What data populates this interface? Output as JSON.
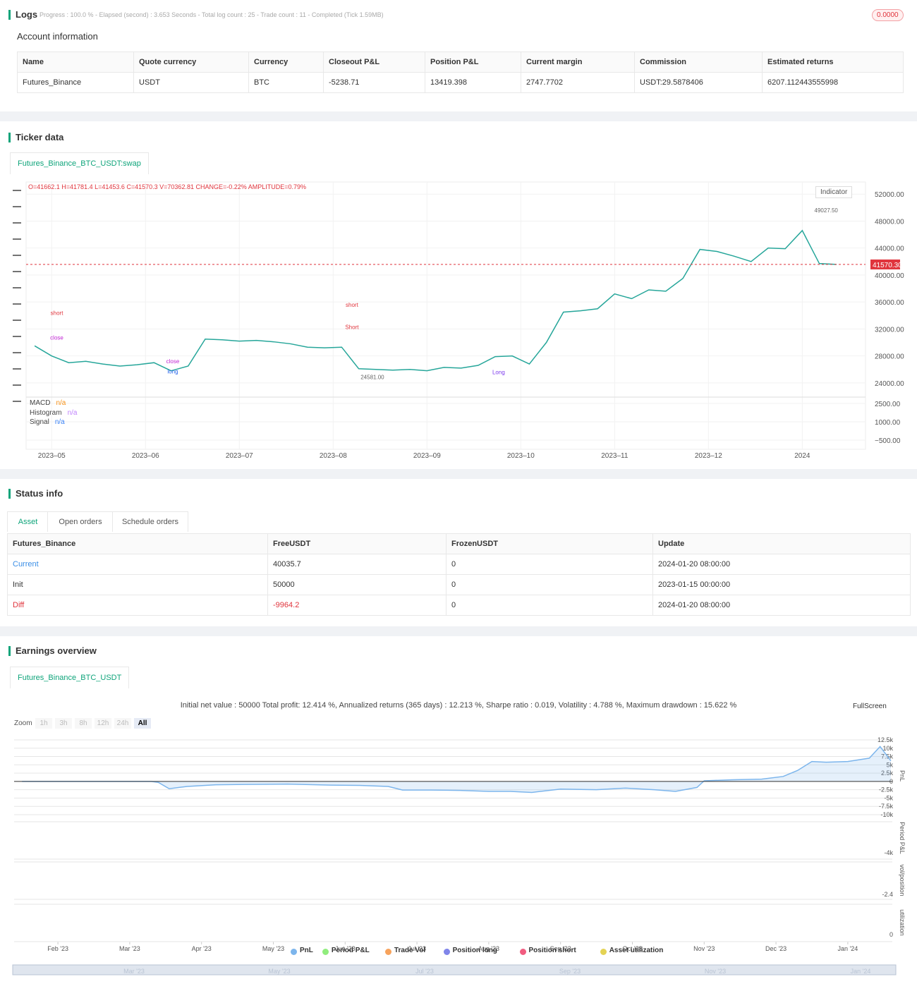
{
  "logs": {
    "title": "Logs",
    "progress": "Progress : 100.0 % - Elapsed (second) : 3.653 Seconds - Total log count : 25 - Trade count : 11 - Completed (Tick 1.59MB)",
    "badge": "0.0000"
  },
  "account": {
    "title": "Account information",
    "headers": [
      "Name",
      "Quote currency",
      "Currency",
      "Closeout P&L",
      "Position P&L",
      "Current margin",
      "Commission",
      "Estimated returns"
    ],
    "rows": [
      [
        "Futures_Binance",
        "USDT",
        "BTC",
        -5238.71,
        13419.398,
        2747.7702,
        "USDT:29.5878406",
        6207.112443555998
      ]
    ]
  },
  "ticker": {
    "title": "Ticker data",
    "tab": "Futures_Binance_BTC_USDT:swap",
    "ohlc": "O=41662.1 H=41781.4 L=41453.6 C=41570.3 V=70362.81 CHANGE=-0.22% AMPLITUDE=0.79%",
    "indicator": "Indicator",
    "macd_legend": [
      {
        "name": "MACD",
        "value": "n/a"
      },
      {
        "name": "Histogram",
        "value": "n/a"
      },
      {
        "name": "Signal",
        "value": "n/a"
      }
    ]
  },
  "status": {
    "title": "Status info",
    "tabs": [
      "Asset",
      "Open orders",
      "Schedule orders"
    ],
    "headers": [
      "Futures_Binance",
      "FreeUSDT",
      "FrozenUSDT",
      "Update"
    ],
    "rows": [
      [
        "Current",
        40035.7,
        0,
        "2024-01-20 08:00:00"
      ],
      [
        "Init",
        50000,
        0,
        "2023-01-15 00:00:00"
      ],
      [
        "Diff",
        -9964.2,
        0,
        "2024-01-20 08:00:00"
      ]
    ]
  },
  "earnings": {
    "title": "Earnings overview",
    "tab": "Futures_Binance_BTC_USDT",
    "summary": "Initial net value : 50000 Total profit: 12.414 %, Annualized returns (365 days) : 12.213 %, Sharpe ratio : 0.019, Volatility : 4.788 %, Maximum drawdown : 15.622 %",
    "fullscreen": "FullScreen",
    "zoom": "Zoom",
    "zoom_buttons": [
      "1h",
      "3h",
      "8h",
      "12h",
      "24h",
      "All"
    ],
    "axis_titles": [
      "PnL",
      "Period P&L",
      "vol/position",
      "utilization"
    ],
    "pane_labels": [
      "-4k",
      "-2.4",
      "0"
    ],
    "legend": [
      {
        "name": "PnL",
        "color": "#7cb5ec"
      },
      {
        "name": "Period P&L",
        "color": "#90ed7d"
      },
      {
        "name": "Trade Vol",
        "color": "#f7a35c"
      },
      {
        "name": "Position long",
        "color": "#8085e9"
      },
      {
        "name": "Position short",
        "color": "#f15c80"
      },
      {
        "name": "Asset utilization",
        "color": "#e4d354"
      }
    ],
    "navigator": [
      "Mar '23",
      "May '23",
      "Jul '23",
      "Sep '23",
      "Nov '23",
      "Jan '24"
    ]
  },
  "chart_data": [
    {
      "type": "line",
      "color": "#26a69a",
      "values": [
        29500,
        28000,
        27000,
        27200,
        26800,
        26500,
        26700,
        27000,
        25800,
        26500,
        30500,
        30400,
        30200,
        30300,
        30100,
        29800,
        29300,
        29200,
        29300,
        26100,
        26000,
        25900,
        26000,
        25800,
        26300,
        26200,
        26600,
        27900,
        28000,
        26800,
        30000,
        34500,
        34700,
        35000,
        37200,
        36500,
        37800,
        37600,
        39500,
        43800,
        43500,
        42800,
        42000,
        44000,
        43900,
        46600,
        41700,
        41570
      ],
      "xlim": [
        -0.5,
        48.5
      ],
      "ylim": [
        22000,
        53800
      ],
      "xticks": [
        {
          "value": 1,
          "label": "2023–05"
        },
        {
          "value": 6.5,
          "label": "2023–06"
        },
        {
          "value": 12,
          "label": "2023–07"
        },
        {
          "value": 17.5,
          "label": "2023–08"
        },
        {
          "value": 23,
          "label": "2023–09"
        },
        {
          "value": 28.5,
          "label": "2023–10"
        },
        {
          "value": 34,
          "label": "2023–11"
        },
        {
          "value": 39.5,
          "label": "2023–12"
        },
        {
          "value": 45,
          "label": "2024"
        }
      ],
      "yticks": [
        {
          "value": 24000,
          "label": "24000.00"
        },
        {
          "value": 28000,
          "label": "28000.00"
        },
        {
          "value": 32000,
          "label": "32000.00"
        },
        {
          "value": 36000,
          "label": "36000.00"
        },
        {
          "value": 40000,
          "label": "40000.00"
        },
        {
          "value": 44000,
          "label": "44000.00"
        },
        {
          "value": 48000,
          "label": "48000.00"
        },
        {
          "value": 52000,
          "label": "52000.00"
        }
      ],
      "reference_line": {
        "value": 41570.3,
        "label": "41570.30"
      },
      "annotations": [
        {
          "text": "short",
          "x": 1.3,
          "y": 34100,
          "color": "#e0343c"
        },
        {
          "text": "close",
          "x": 1.3,
          "y": 30400,
          "color": "#c026d3"
        },
        {
          "text": "short",
          "x": 18.6,
          "y": 35300,
          "color": "#e0343c"
        },
        {
          "text": "Short",
          "x": 18.6,
          "y": 32000,
          "color": "#e0343c"
        },
        {
          "text": "close",
          "x": 8.1,
          "y": 26900,
          "color": "#c026d3"
        },
        {
          "text": "long",
          "x": 8.1,
          "y": 25400,
          "color": "#2563eb"
        },
        {
          "text": "Long",
          "x": 27.2,
          "y": 25300,
          "color": "#7c3aed"
        },
        {
          "text": "49027.50",
          "x": 46.4,
          "y": 49300,
          "color": "#666666"
        },
        {
          "text": "24581.00",
          "x": 19.8,
          "y": 24581,
          "color": "#666666"
        }
      ]
    },
    {
      "type": "bar",
      "ylim": [
        -1250,
        2900
      ],
      "yticks": [
        {
          "value": -500,
          "label": "−500.00"
        },
        {
          "value": 1000,
          "label": "1000.00"
        },
        {
          "value": 2500,
          "label": "2500.00"
        }
      ]
    },
    {
      "type": "area",
      "color": "#7cb5ec",
      "x": [
        0.5,
        2.3,
        2.4,
        2.55,
        2.8,
        3.2,
        3.6,
        4.2,
        4.8,
        5.2,
        5.6,
        5.8,
        6.2,
        6.6,
        7.0,
        7.3,
        7.6,
        8.0,
        8.5,
        8.9,
        9.3,
        9.6,
        9.9,
        10.0,
        10.4,
        10.8,
        11.1,
        11.3,
        11.5,
        11.7,
        12.0,
        12.3,
        12.45,
        12.6
      ],
      "values": [
        0,
        0,
        -300,
        -2200,
        -1500,
        -1000,
        -900,
        -800,
        -1100,
        -1200,
        -1500,
        -2600,
        -2600,
        -2700,
        -3000,
        -3000,
        -3300,
        -2300,
        -2500,
        -2000,
        -2500,
        -3000,
        -1800,
        200,
        500,
        700,
        1500,
        3300,
        6000,
        5800,
        6000,
        7000,
        10500,
        6200
      ],
      "xlim": [
        0.39,
        12.62
      ],
      "ylim": [
        -11060,
        13350
      ],
      "xticks": [
        {
          "value": 1,
          "label": "Feb '23"
        },
        {
          "value": 2,
          "label": "Mar '23"
        },
        {
          "value": 3,
          "label": "Apr '23"
        },
        {
          "value": 4,
          "label": "May '23"
        },
        {
          "value": 5,
          "label": "Jun '23"
        },
        {
          "value": 6,
          "label": "Jul '23"
        },
        {
          "value": 7,
          "label": "Aug '23"
        },
        {
          "value": 8,
          "label": "Sep '23"
        },
        {
          "value": 9,
          "label": "Oct '23"
        },
        {
          "value": 10,
          "label": "Nov '23"
        },
        {
          "value": 11,
          "label": "Dec '23"
        },
        {
          "value": 12,
          "label": "Jan '24"
        }
      ],
      "yticks": [
        {
          "value": -10000,
          "label": "-10k"
        },
        {
          "value": -7500,
          "label": "-7.5k"
        },
        {
          "value": -5000,
          "label": "-5k"
        },
        {
          "value": -2500,
          "label": "-2.5k"
        },
        0,
        {
          "value": 2500,
          "label": "2.5k"
        },
        {
          "value": 5000,
          "label": "5k"
        },
        {
          "value": 7500,
          "label": "7.5k"
        },
        {
          "value": 10000,
          "label": "10k"
        },
        {
          "value": 12500,
          "label": "12.5k"
        }
      ]
    }
  ]
}
